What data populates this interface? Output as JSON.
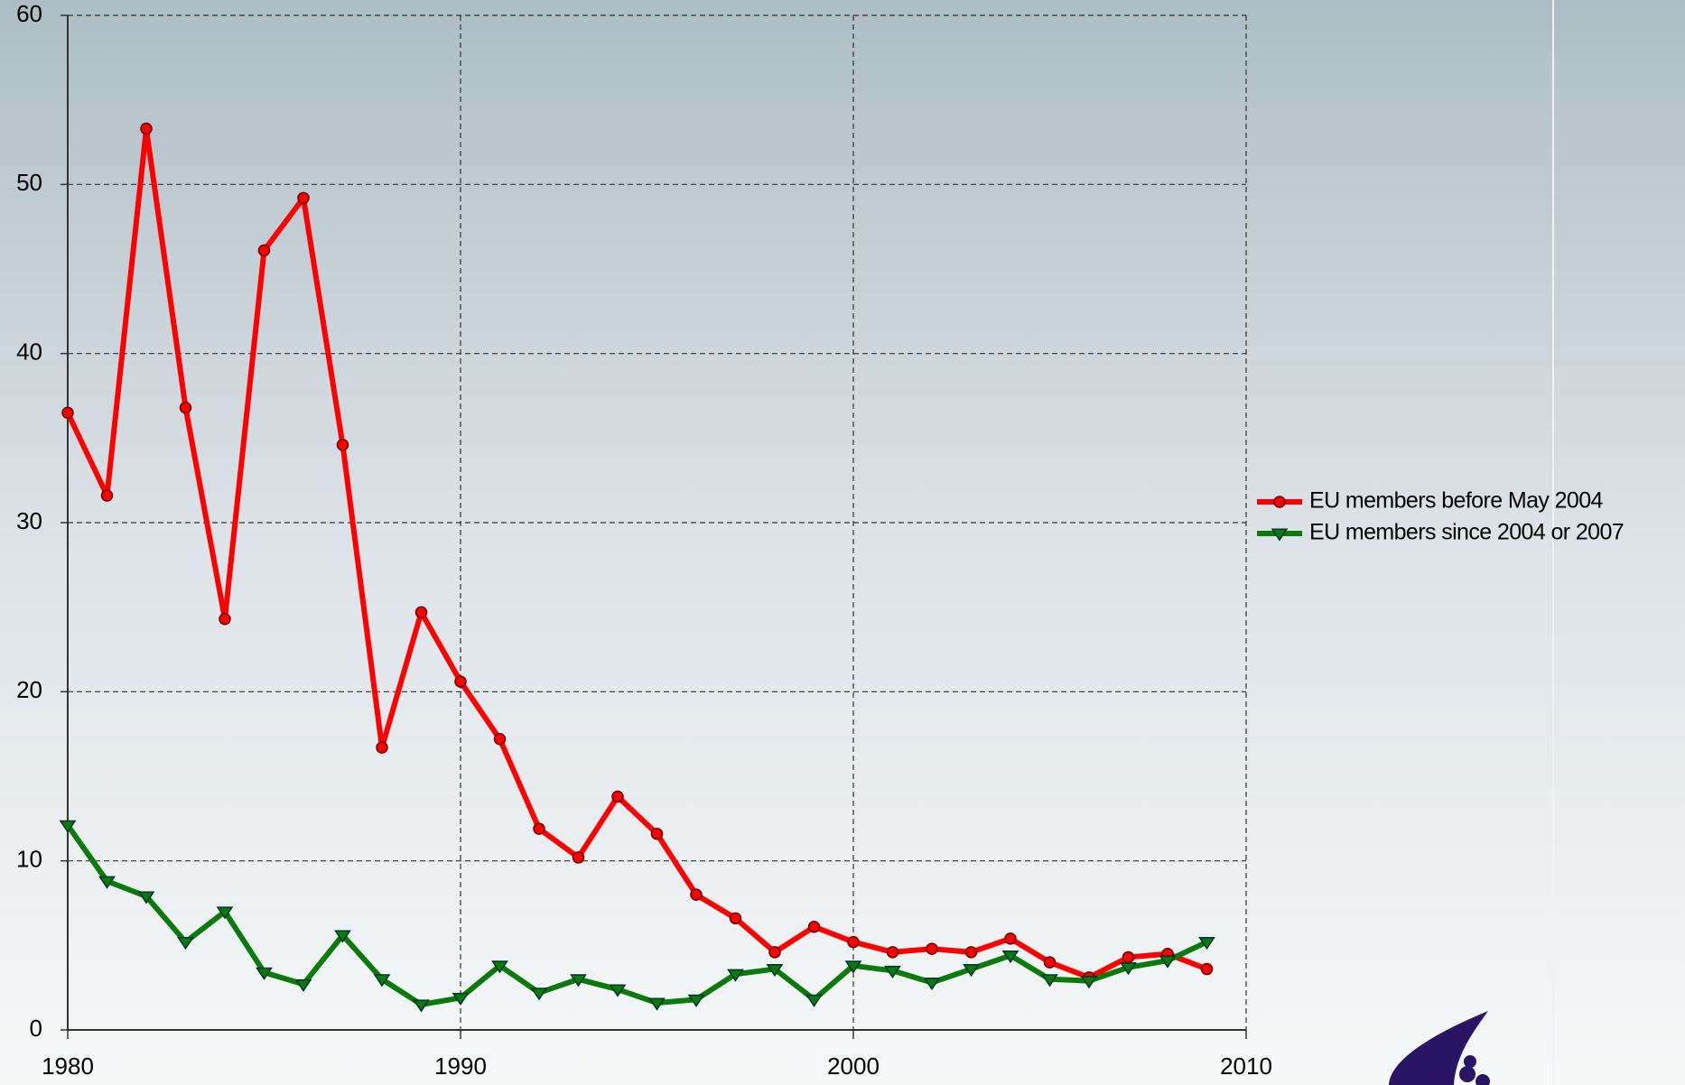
{
  "chart_data": {
    "type": "line",
    "x": [
      1980,
      1981,
      1982,
      1983,
      1984,
      1985,
      1986,
      1987,
      1988,
      1989,
      1990,
      1991,
      1992,
      1993,
      1994,
      1995,
      1996,
      1997,
      1998,
      1999,
      2000,
      2001,
      2002,
      2003,
      2004,
      2005,
      2006,
      2007,
      2008,
      2009
    ],
    "series": [
      {
        "name": "EU members before May 2004",
        "color": "#ff0000",
        "marker": "circle",
        "values": [
          36.5,
          31.6,
          53.3,
          36.8,
          24.3,
          46.1,
          49.2,
          34.6,
          16.7,
          24.7,
          20.6,
          17.2,
          11.9,
          10.2,
          13.8,
          11.6,
          8.0,
          6.6,
          4.6,
          6.1,
          5.2,
          4.6,
          4.8,
          4.6,
          5.4,
          4.0,
          3.1,
          4.3,
          4.5,
          3.6
        ]
      },
      {
        "name": "EU members since 2004 or 2007",
        "color": "#0a7a0a",
        "marker": "triangle-down",
        "values": [
          12.1,
          8.8,
          7.9,
          5.2,
          7.0,
          3.4,
          2.7,
          5.6,
          3.0,
          1.5,
          1.9,
          3.8,
          2.2,
          3.0,
          2.4,
          1.6,
          1.8,
          3.3,
          3.6,
          1.8,
          3.8,
          3.5,
          2.8,
          3.6,
          4.4,
          3.0,
          2.9,
          3.7,
          4.1,
          5.2
        ]
      }
    ],
    "xlim": [
      1980,
      2010
    ],
    "xticks": [
      1980,
      1990,
      2000,
      2010
    ],
    "ylim": [
      0,
      60
    ],
    "yticks": [
      0,
      10,
      20,
      30,
      40,
      50,
      60
    ],
    "grid": true,
    "legend": "right"
  }
}
